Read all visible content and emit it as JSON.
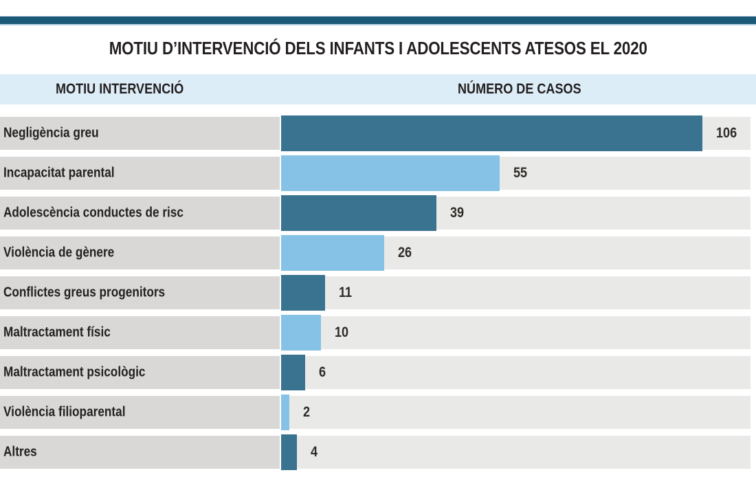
{
  "page": {
    "title": "MOTIU D’INTERVENCIÓ DELS INFANTS I ADOLESCENTS ATESOS EL 2020"
  },
  "table_headers": {
    "motiu": "MOTIU INTERVENCIÓ",
    "casos": "NÚMERO DE CASOS"
  },
  "chart_data": {
    "type": "bar",
    "orientation": "horizontal",
    "title": "MOTIU D’INTERVENCIÓ DELS INFANTS I ADOLESCENTS ATESOS EL 2020",
    "xlabel": "NÚMERO DE CASOS",
    "ylabel": "MOTIU INTERVENCIÓ",
    "xlim": [
      0,
      118
    ],
    "grid": false,
    "legend": "none",
    "categories": [
      "Negligència greu",
      "Incapacitat parental",
      "Adolescència conductes de risc",
      "Violència de gènere",
      "Conflictes greus progenitors",
      "Maltractament físic",
      "Maltractament psicològic",
      "Violència filioparental",
      "Altres"
    ],
    "values": [
      106,
      55,
      39,
      26,
      11,
      10,
      6,
      2,
      4
    ],
    "bar_color_pattern": "alternating"
  },
  "colors": {
    "top_rule": "#1a5a76",
    "header_band": "#ddedf7",
    "label_cell_bg": "#d9d8d6",
    "track_bg": "#e9e9e7",
    "bar_dark": "#3a7390",
    "bar_light": "#85c2e6",
    "text": "#231f20"
  }
}
